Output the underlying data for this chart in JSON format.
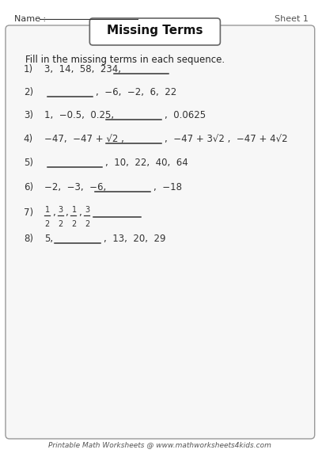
{
  "title": "Missing Terms",
  "sheet_label": "Sheet 1",
  "name_label": "Name :",
  "instruction": "Fill in the missing terms in each sequence.",
  "footer": "Printable Math Worksheets @ www.mathworksheets4kids.com",
  "bg_color": "#ffffff",
  "problems": [
    {
      "num": "1)",
      "text_parts": [
        {
          "t": "3,  14,  58,  234,",
          "type": "text"
        },
        {
          "t": "blank_long",
          "type": "blank"
        }
      ]
    },
    {
      "num": "2)",
      "text_parts": [
        {
          "t": "blank_medium",
          "type": "blank"
        },
        {
          "t": ",  −6,  −2,  6,  22",
          "type": "text"
        }
      ]
    },
    {
      "num": "3)",
      "text_parts": [
        {
          "t": "1,  −0.5,  0.25,",
          "type": "text"
        },
        {
          "t": "blank_long",
          "type": "blank"
        },
        {
          "t": ",  0.0625",
          "type": "text"
        }
      ]
    },
    {
      "num": "4)",
      "text_parts": [
        {
          "t": "−47,  −47 + √2 ,",
          "type": "text"
        },
        {
          "t": "blank_long",
          "type": "blank"
        },
        {
          "t": ",  −47 + 3√2 ,  −47 + 4√2",
          "type": "text"
        }
      ]
    },
    {
      "num": "5)",
      "text_parts": [
        {
          "t": "blank_long",
          "type": "blank"
        },
        {
          "t": ",  10,  22,  40,  64",
          "type": "text"
        }
      ]
    },
    {
      "num": "6)",
      "text_parts": [
        {
          "t": "−2,  −3,  −6,",
          "type": "text"
        },
        {
          "t": "blank_long",
          "type": "blank"
        },
        {
          "t": ",  −18",
          "type": "text"
        }
      ]
    },
    {
      "num": "7)",
      "text_parts": [
        {
          "t": "frac_sequence",
          "type": "special"
        },
        {
          "t": "blank_medium",
          "type": "blank"
        }
      ]
    },
    {
      "num": "8)",
      "text_parts": [
        {
          "t": "5,",
          "type": "text"
        },
        {
          "t": "blank_medium",
          "type": "blank"
        },
        {
          "t": ",  13,  20,  29",
          "type": "text"
        }
      ]
    }
  ]
}
